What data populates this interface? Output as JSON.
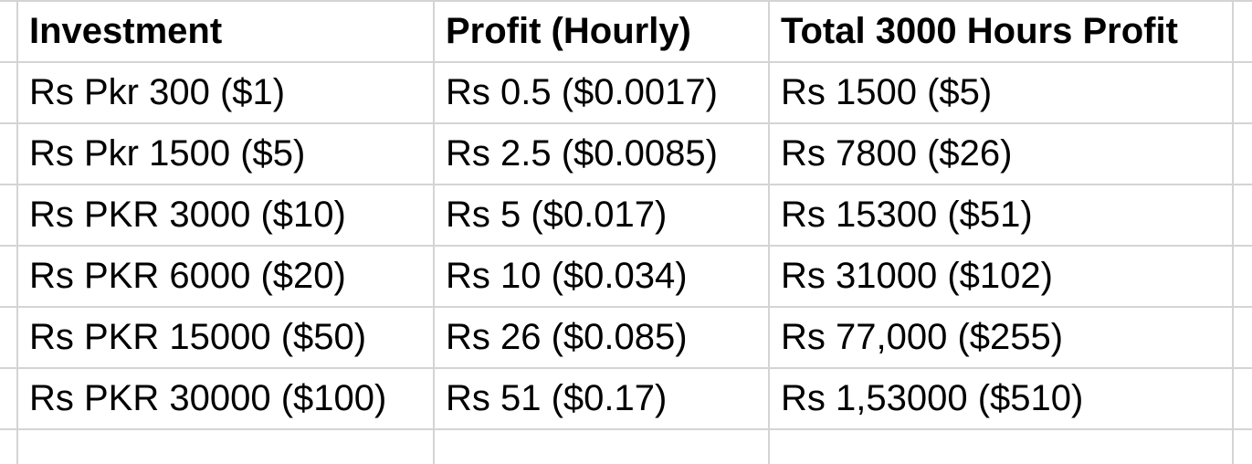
{
  "table": {
    "headers": [
      "Investment",
      "Profit (Hourly)",
      "Total 3000 Hours Profit"
    ],
    "rows": [
      [
        "Rs Pkr 300 ($1)",
        "Rs 0.5 ($0.0017)",
        "Rs 1500 ($5)"
      ],
      [
        "Rs Pkr 1500 ($5)",
        "Rs 2.5 ($0.0085)",
        "Rs 7800 ($26)"
      ],
      [
        "Rs PKR 3000 ($10)",
        "Rs 5 ($0.017)",
        "Rs 15300 ($51)"
      ],
      [
        "Rs PKR 6000 ($20)",
        "Rs 10 ($0.034)",
        "Rs 31000 ($102)"
      ],
      [
        "Rs PKR 15000 ($50)",
        "Rs 26 ($0.085)",
        "Rs 77,000 ($255)"
      ],
      [
        "Rs PKR 30000 ($100)",
        "Rs 51 ($0.17)",
        "Rs 1,53000 ($510)"
      ]
    ]
  },
  "colors": {
    "gridline": "#d4d4d4",
    "text": "#000000",
    "background": "#ffffff"
  }
}
